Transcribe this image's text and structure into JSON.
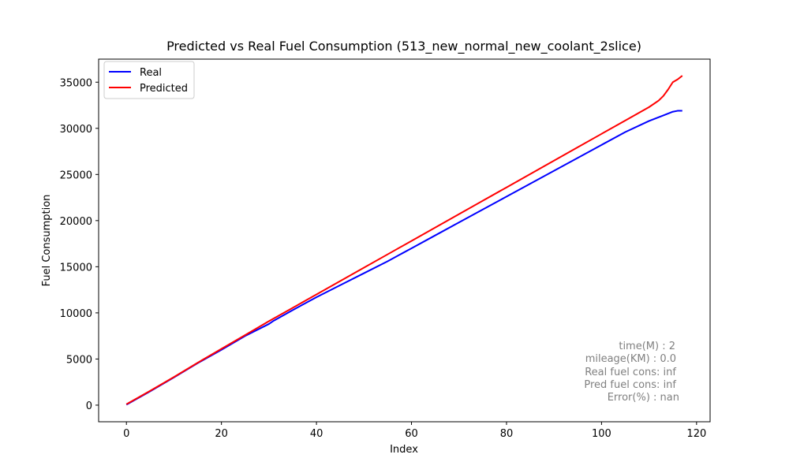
{
  "chart_data": {
    "type": "line",
    "title": "Predicted vs Real Fuel Consumption (513_new_normal_new_coolant_2slice)",
    "xlabel": "Index",
    "ylabel": "Fuel Consumption",
    "xlim": [
      -5.85,
      122.85
    ],
    "ylim": [
      -1800,
      37500
    ],
    "xticks": [
      0,
      20,
      40,
      60,
      80,
      100,
      120
    ],
    "yticks": [
      0,
      5000,
      10000,
      15000,
      20000,
      25000,
      30000,
      35000
    ],
    "grid": false,
    "legend_position": "top-left",
    "series": [
      {
        "name": "Real",
        "color": "#0000ff",
        "x": [
          0,
          5,
          10,
          15,
          20,
          25,
          30,
          31,
          35,
          40,
          45,
          50,
          55,
          60,
          65,
          70,
          75,
          80,
          85,
          90,
          95,
          100,
          105,
          110,
          113,
          115,
          116,
          117
        ],
        "y": [
          50,
          1500,
          3000,
          4550,
          6000,
          7500,
          8800,
          9150,
          10300,
          11700,
          13000,
          14300,
          15600,
          17000,
          18400,
          19800,
          21200,
          22600,
          24000,
          25400,
          26800,
          28200,
          29600,
          30800,
          31400,
          31800,
          31900,
          31900
        ]
      },
      {
        "name": "Predicted",
        "color": "#ff0000",
        "x": [
          0,
          5,
          10,
          15,
          20,
          25,
          30,
          35,
          40,
          45,
          50,
          55,
          60,
          65,
          70,
          75,
          80,
          85,
          90,
          95,
          100,
          105,
          110,
          112,
          113,
          114,
          115,
          116,
          117
        ],
        "y": [
          100,
          1550,
          3050,
          4600,
          6100,
          7600,
          9100,
          10550,
          12000,
          13450,
          14900,
          16350,
          17800,
          19250,
          20700,
          22150,
          23600,
          25050,
          26500,
          27950,
          29400,
          30850,
          32300,
          33000,
          33500,
          34200,
          35000,
          35300,
          35700
        ]
      }
    ],
    "annotations": [
      "time(M) : 2",
      "mileage(KM) : 0.0",
      "Real fuel cons: inf",
      "Pred fuel cons: inf",
      "Error(%) : nan"
    ]
  }
}
